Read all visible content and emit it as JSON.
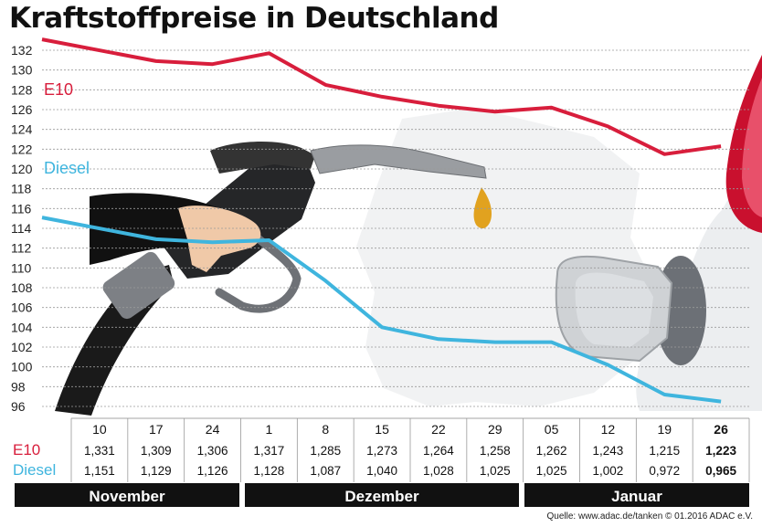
{
  "title": "Kraftstoffpreise in Deutschland",
  "source": "Quelle: www.adac.de/tanken   © 01.2016  ADAC e.V.",
  "colors": {
    "e10": "#d81e3c",
    "diesel": "#3fb5de",
    "grid": "#9a9a9a"
  },
  "chart_data": {
    "type": "line",
    "title": "Kraftstoffpreise in Deutschland",
    "x": [
      "10",
      "17",
      "24",
      "1",
      "8",
      "15",
      "22",
      "29",
      "05",
      "12",
      "19",
      "26"
    ],
    "months": [
      "November",
      "Dezember",
      "Januar"
    ],
    "yticks": [
      96,
      98,
      100,
      102,
      104,
      106,
      108,
      110,
      112,
      114,
      116,
      118,
      120,
      122,
      124,
      126,
      128,
      130,
      132
    ],
    "ylim": [
      95,
      133
    ],
    "grid": true,
    "series": [
      {
        "name": "E10",
        "values": [
          133.1,
          130.9,
          130.6,
          131.7,
          128.5,
          127.3,
          126.4,
          125.8,
          126.2,
          124.3,
          121.5,
          122.3
        ],
        "labels": [
          "1,331",
          "1,309",
          "1,306",
          "1,317",
          "1,285",
          "1,273",
          "1,264",
          "1,258",
          "1,262",
          "1,243",
          "1,215",
          "1,223"
        ]
      },
      {
        "name": "Diesel",
        "values": [
          115.1,
          112.9,
          112.6,
          112.8,
          108.7,
          104.0,
          102.8,
          102.5,
          102.5,
          100.2,
          97.2,
          96.5
        ],
        "labels": [
          "1,151",
          "1,129",
          "1,126",
          "1,128",
          "1,087",
          "1,040",
          "1,028",
          "1,025",
          "1,025",
          "1,002",
          "0,972",
          "0,965"
        ]
      }
    ]
  }
}
